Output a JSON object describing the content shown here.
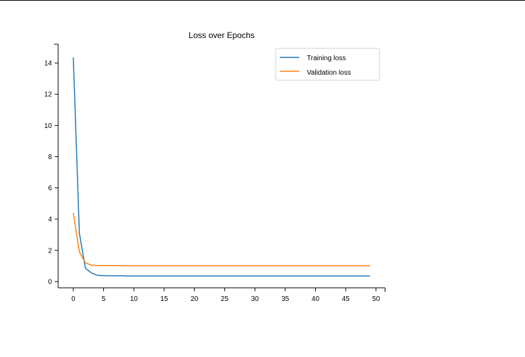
{
  "chart_data": {
    "type": "line",
    "title": "Loss over Epochs",
    "xlabel": "",
    "ylabel": "",
    "xlim": [
      -2.5,
      51.5
    ],
    "ylim": [
      -0.4,
      15.2
    ],
    "xticks": [
      0,
      5,
      10,
      15,
      20,
      25,
      30,
      35,
      40,
      45,
      50
    ],
    "yticks": [
      0,
      2,
      4,
      6,
      8,
      10,
      12,
      14
    ],
    "legend_position": "top-right",
    "grid": false,
    "x": [
      0,
      1,
      2,
      3,
      4,
      5,
      6,
      7,
      8,
      9,
      10,
      11,
      12,
      13,
      14,
      15,
      16,
      17,
      18,
      19,
      20,
      21,
      22,
      23,
      24,
      25,
      26,
      27,
      28,
      29,
      30,
      31,
      32,
      33,
      34,
      35,
      36,
      37,
      38,
      39,
      40,
      41,
      42,
      43,
      44,
      45,
      46,
      47,
      48,
      49
    ],
    "series": [
      {
        "name": "Training loss",
        "color": "#1f77b4",
        "values": [
          14.35,
          3.1,
          0.85,
          0.55,
          0.4,
          0.38,
          0.37,
          0.37,
          0.37,
          0.36,
          0.36,
          0.36,
          0.36,
          0.36,
          0.36,
          0.36,
          0.36,
          0.36,
          0.36,
          0.36,
          0.36,
          0.36,
          0.36,
          0.36,
          0.36,
          0.36,
          0.36,
          0.36,
          0.36,
          0.36,
          0.36,
          0.36,
          0.36,
          0.36,
          0.36,
          0.36,
          0.36,
          0.36,
          0.36,
          0.36,
          0.36,
          0.36,
          0.36,
          0.36,
          0.36,
          0.36,
          0.36,
          0.36,
          0.36,
          0.36
        ]
      },
      {
        "name": "Validation loss",
        "color": "#ff7f0e",
        "values": [
          4.4,
          1.9,
          1.2,
          1.05,
          1.03,
          1.03,
          1.03,
          1.03,
          1.02,
          1.02,
          1.02,
          1.02,
          1.02,
          1.02,
          1.02,
          1.02,
          1.02,
          1.02,
          1.02,
          1.02,
          1.02,
          1.02,
          1.02,
          1.02,
          1.02,
          1.02,
          1.02,
          1.02,
          1.02,
          1.02,
          1.02,
          1.02,
          1.02,
          1.02,
          1.02,
          1.02,
          1.02,
          1.02,
          1.02,
          1.02,
          1.02,
          1.02,
          1.02,
          1.02,
          1.02,
          1.02,
          1.02,
          1.02,
          1.02,
          1.02
        ]
      }
    ]
  }
}
